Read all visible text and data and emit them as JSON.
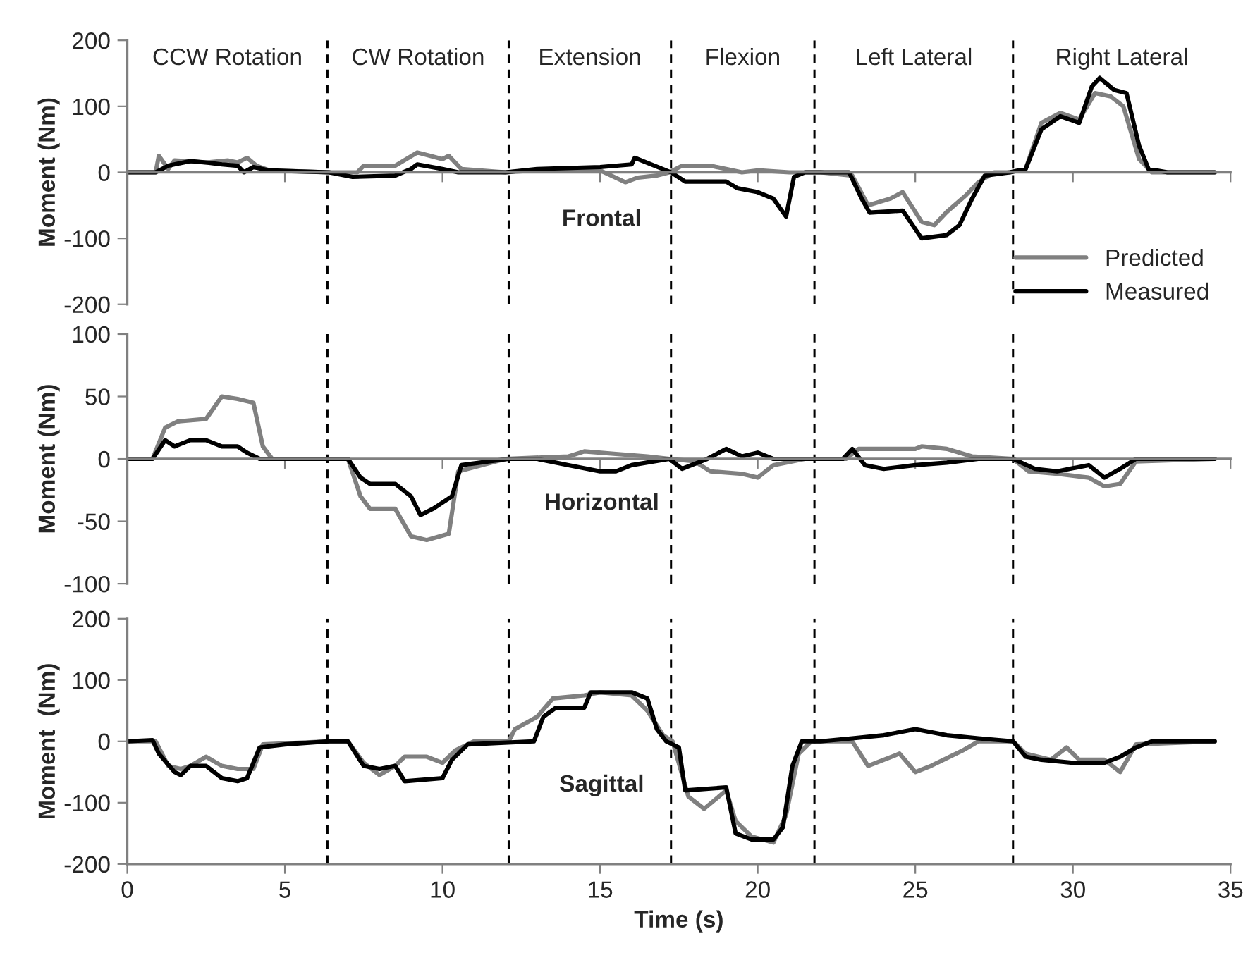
{
  "chart_data": [
    {
      "type": "line",
      "title": "Frontal",
      "ylabel": "Moment (Nm)",
      "xlim": [
        0,
        35
      ],
      "xticks": [
        0,
        5,
        10,
        15,
        20,
        25,
        30,
        35
      ],
      "ylim": [
        -200,
        200
      ],
      "yticks": [
        -200,
        -100,
        0,
        100,
        200
      ],
      "tick_labels": "y",
      "legend": "lower right",
      "series": [
        {
          "name": "Predicted",
          "color": "#808080",
          "x": [
            0,
            0.9,
            1.0,
            1.3,
            1.5,
            2.5,
            3.2,
            3.5,
            3.8,
            4.1,
            4.5,
            6.4,
            7.3,
            7.5,
            8.5,
            9.2,
            9.6,
            10,
            10.2,
            10.6,
            12,
            13,
            15,
            15.8,
            16.2,
            16.8,
            17.2,
            17.6,
            18.5,
            19,
            19.5,
            20,
            21,
            22,
            23,
            23.5,
            24.2,
            24.6,
            25.2,
            25.6,
            26,
            26.6,
            27,
            27.5,
            28,
            28.5,
            29,
            29.6,
            30.2,
            30.7,
            31.2,
            31.6,
            32.1,
            32.5,
            34.5
          ],
          "values": [
            0,
            0,
            25,
            5,
            18,
            15,
            18,
            15,
            22,
            10,
            3,
            0,
            0,
            10,
            10,
            30,
            25,
            20,
            25,
            5,
            0,
            3,
            3,
            -15,
            -8,
            -5,
            0,
            10,
            10,
            5,
            0,
            3,
            0,
            0,
            -5,
            -50,
            -40,
            -30,
            -75,
            -80,
            -60,
            -35,
            -15,
            0,
            0,
            5,
            75,
            90,
            80,
            120,
            115,
            100,
            20,
            0,
            0
          ]
        },
        {
          "name": "Measured",
          "color": "#000000",
          "x": [
            0,
            0.9,
            1.3,
            2.0,
            2.5,
            3,
            3.5,
            3.7,
            4.0,
            4.5,
            5,
            6.4,
            7.15,
            8.5,
            9.0,
            9.2,
            10,
            10.5,
            12,
            13,
            15,
            16,
            16.1,
            17.25,
            17.7,
            19,
            19.35,
            20,
            20.5,
            20.9,
            21.15,
            21.5,
            22.9,
            23.3,
            23.55,
            24.6,
            25.2,
            26,
            26.4,
            26.8,
            27.2,
            28,
            28.5,
            29.0,
            29.6,
            30.2,
            30.6,
            30.85,
            31.3,
            31.7,
            32.1,
            32.4,
            33,
            34.5
          ],
          "values": [
            0,
            0,
            10,
            17,
            15,
            12,
            10,
            0,
            8,
            3,
            2,
            0,
            -7,
            -5,
            5,
            12,
            5,
            0,
            0,
            5,
            8,
            12,
            22,
            0,
            -14,
            -14,
            -24,
            -30,
            -40,
            -67,
            -7,
            0,
            0,
            -40,
            -61,
            -58,
            -100,
            -95,
            -80,
            -40,
            -5,
            0,
            5,
            65,
            85,
            75,
            130,
            143,
            125,
            120,
            40,
            5,
            0,
            0
          ]
        }
      ],
      "ref_lines": [
        {
          "axis": "x",
          "value": 6.35,
          "color": "#000000",
          "line_style": "dashed"
        },
        {
          "axis": "x",
          "value": 12.1,
          "color": "#000000",
          "line_style": "dashed"
        },
        {
          "axis": "x",
          "value": 17.25,
          "color": "#000000",
          "line_style": "dashed"
        },
        {
          "axis": "x",
          "value": 21.8,
          "color": "#000000",
          "line_style": "dashed"
        },
        {
          "axis": "x",
          "value": 28.1,
          "color": "#000000",
          "line_style": "dashed"
        }
      ],
      "annotations": [
        "CCW Rotation",
        "CW Rotation",
        "Extension",
        "Flexion",
        "Left Lateral",
        "Right Lateral"
      ]
    },
    {
      "type": "line",
      "title": "Horizontal",
      "ylabel": "Moment (Nm)",
      "xlim": [
        0,
        35
      ],
      "xticks": [
        0,
        5,
        10,
        15,
        20,
        25,
        30,
        35
      ],
      "ylim": [
        -100,
        100
      ],
      "yticks": [
        -100,
        -50,
        0,
        50,
        100
      ],
      "tick_labels": "y",
      "series": [
        {
          "color": "#808080",
          "x": [
            0,
            0.8,
            1.2,
            1.6,
            2.5,
            3.0,
            3.5,
            4.0,
            4.3,
            4.6,
            6.4,
            7.0,
            7.4,
            7.7,
            8.5,
            9.0,
            9.5,
            10.2,
            10.5,
            12,
            14,
            14.5,
            15.5,
            16.5,
            17.2,
            18,
            18.5,
            19.5,
            20,
            20.5,
            21.5,
            22.8,
            23.2,
            25,
            25.2,
            26,
            26.8,
            28.1,
            28.6,
            29.5,
            30.5,
            31,
            31.5,
            32,
            34.5
          ],
          "values": [
            0,
            0,
            25,
            30,
            32,
            50,
            48,
            45,
            10,
            0,
            0,
            0,
            -30,
            -40,
            -40,
            -62,
            -65,
            -60,
            -10,
            0,
            2,
            6,
            4,
            2,
            0,
            -2,
            -10,
            -12,
            -15,
            -5,
            0,
            0,
            8,
            8,
            10,
            8,
            2,
            0,
            -10,
            -12,
            -15,
            -22,
            -20,
            -2,
            0
          ]
        },
        {
          "color": "#000000",
          "x": [
            0,
            0.8,
            1.2,
            1.5,
            2,
            2.5,
            3,
            3.5,
            3.8,
            4.2,
            6.4,
            7.0,
            7.4,
            7.7,
            8.5,
            9.0,
            9.3,
            9.7,
            10,
            10.3,
            10.6,
            11.5,
            12.1,
            13,
            14,
            15,
            15.5,
            16,
            17.2,
            17.6,
            18.4,
            19.0,
            19.5,
            20,
            20.5,
            22,
            22.7,
            23.0,
            23.4,
            24,
            25,
            26,
            27,
            28.1,
            28.8,
            29.5,
            30.5,
            31.0,
            31.5,
            32,
            34.5
          ],
          "values": [
            0,
            0,
            15,
            10,
            15,
            15,
            10,
            10,
            5,
            0,
            0,
            0,
            -15,
            -20,
            -20,
            -30,
            -45,
            -40,
            -35,
            -30,
            -5,
            -2,
            0,
            0,
            -5,
            -10,
            -10,
            -5,
            0,
            -8,
            0,
            8,
            2,
            5,
            0,
            0,
            0,
            8,
            -5,
            -8,
            -5,
            -3,
            0,
            0,
            -8,
            -10,
            -5,
            -15,
            -8,
            0,
            0
          ]
        }
      ],
      "ref_lines": [
        {
          "axis": "x",
          "value": 6.35,
          "color": "#000000",
          "line_style": "dashed"
        },
        {
          "axis": "x",
          "value": 12.1,
          "color": "#000000",
          "line_style": "dashed"
        },
        {
          "axis": "x",
          "value": 17.25,
          "color": "#000000",
          "line_style": "dashed"
        },
        {
          "axis": "x",
          "value": 21.8,
          "color": "#000000",
          "line_style": "dashed"
        },
        {
          "axis": "x",
          "value": 28.1,
          "color": "#000000",
          "line_style": "dashed"
        }
      ]
    },
    {
      "type": "line",
      "title": "Sagittal",
      "ylabel": "Moment  (Nm)",
      "xlabel": "Time (s)",
      "xlim": [
        0,
        35
      ],
      "xticks": [
        0,
        5,
        10,
        15,
        20,
        25,
        30,
        35
      ],
      "ylim": [
        -200,
        200
      ],
      "yticks": [
        -200,
        -100,
        0,
        100,
        200
      ],
      "series": [
        {
          "color": "#808080",
          "x": [
            0,
            0.9,
            1.3,
            1.7,
            2.0,
            2.5,
            3.0,
            3.5,
            4.0,
            4.3,
            6.4,
            7.0,
            7.5,
            8,
            8.5,
            8.8,
            9.5,
            10,
            10.4,
            11,
            12.1,
            12.3,
            13,
            13.5,
            14.5,
            15,
            16,
            16.5,
            17,
            17.3,
            17.8,
            18.3,
            19,
            19.3,
            19.8,
            20.5,
            20.9,
            21.3,
            21.7,
            23,
            23.5,
            24.5,
            25,
            25.5,
            26.5,
            27,
            28.1,
            28.5,
            29.3,
            29.8,
            30.2,
            31,
            31.5,
            32,
            34.5
          ],
          "values": [
            0,
            0,
            -40,
            -45,
            -40,
            -25,
            -40,
            -45,
            -45,
            -5,
            0,
            0,
            -35,
            -55,
            -40,
            -25,
            -25,
            -35,
            -15,
            0,
            0,
            20,
            40,
            70,
            75,
            80,
            75,
            50,
            10,
            0,
            -90,
            -110,
            -80,
            -130,
            -155,
            -165,
            -120,
            -20,
            0,
            0,
            -40,
            -20,
            -50,
            -40,
            -15,
            0,
            0,
            -20,
            -30,
            -10,
            -30,
            -30,
            -50,
            -5,
            0
          ]
        },
        {
          "color": "#000000",
          "x": [
            0,
            0.8,
            1.0,
            1.5,
            1.7,
            2.0,
            2.5,
            3.0,
            3.5,
            3.8,
            4.2,
            5,
            6.4,
            7.0,
            7.5,
            8,
            8.5,
            8.8,
            10,
            10.3,
            10.8,
            12.9,
            13.2,
            13.6,
            14.5,
            14.7,
            16.0,
            16.5,
            16.8,
            17.1,
            17.5,
            17.7,
            19.0,
            19.3,
            19.8,
            20.5,
            20.8,
            21.1,
            21.4,
            22.0,
            23.0,
            24.0,
            25.0,
            26,
            27,
            28.1,
            28.5,
            29,
            30,
            31,
            31.5,
            32,
            32.5,
            34.5
          ],
          "values": [
            0,
            2,
            -20,
            -50,
            -55,
            -40,
            -40,
            -60,
            -65,
            -60,
            -10,
            -5,
            0,
            0,
            -40,
            -45,
            -40,
            -65,
            -60,
            -30,
            -5,
            0,
            40,
            55,
            55,
            80,
            80,
            70,
            20,
            0,
            -10,
            -80,
            -75,
            -150,
            -160,
            -160,
            -140,
            -40,
            0,
            0,
            5,
            10,
            20,
            10,
            5,
            0,
            -25,
            -30,
            -35,
            -35,
            -25,
            -10,
            0,
            0
          ]
        }
      ],
      "ref_lines": [
        {
          "axis": "x",
          "value": 6.35,
          "color": "#000000",
          "line_style": "dashed"
        },
        {
          "axis": "x",
          "value": 12.1,
          "color": "#000000",
          "line_style": "dashed"
        },
        {
          "axis": "x",
          "value": 17.25,
          "color": "#000000",
          "line_style": "dashed"
        },
        {
          "axis": "x",
          "value": 21.8,
          "color": "#000000",
          "line_style": "dashed"
        },
        {
          "axis": "x",
          "value": 28.1,
          "color": "#000000",
          "line_style": "dashed"
        }
      ]
    }
  ]
}
